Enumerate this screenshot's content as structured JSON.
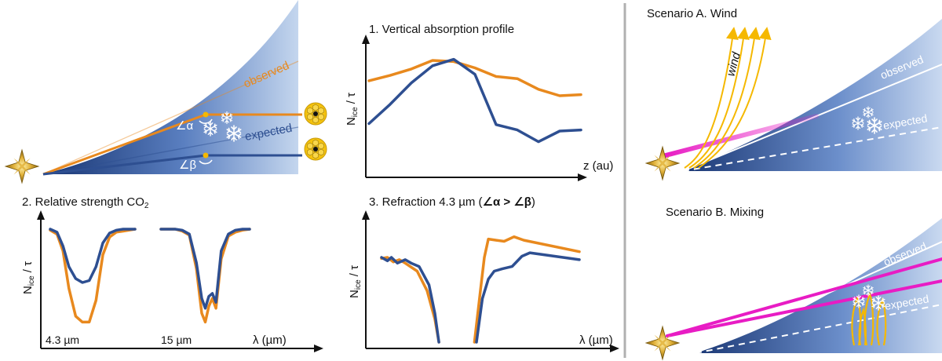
{
  "colors": {
    "orange": "#E8891E",
    "blue": "#2E4F91",
    "magenta": "#E81CC4",
    "gold": "#F5B800",
    "disk_dark": "#1C3A78",
    "disk_light": "#B7CCEA",
    "divider": "#B0B0B0"
  },
  "panel_geometry": {
    "label_observed": "observed",
    "label_expected": "expected",
    "label_alpha": "∠α",
    "label_beta": "∠β",
    "icons": [
      "star-icon",
      "telescope-icon",
      "snowflake-icon"
    ]
  },
  "chart_data": [
    {
      "id": "profile",
      "type": "line",
      "title": "1. Vertical absorption profile",
      "xlabel": "z (au)",
      "ylabel": "N_ice / τ",
      "ylabel_main": "N",
      "ylabel_sub": "ice",
      "ylabel_tail": " / τ",
      "x": [
        0,
        1,
        2,
        3,
        4,
        5,
        6,
        7,
        8,
        9,
        10
      ],
      "xlim": [
        0,
        10
      ],
      "ylim": [
        0,
        1.1
      ],
      "series": [
        {
          "name": "observed",
          "color": "orange",
          "values": [
            0.8,
            0.85,
            0.91,
            0.99,
            0.98,
            0.92,
            0.84,
            0.82,
            0.72,
            0.66,
            0.67
          ]
        },
        {
          "name": "expected",
          "color": "blue",
          "values": [
            0.4,
            0.58,
            0.78,
            0.94,
            1.0,
            0.86,
            0.39,
            0.34,
            0.23,
            0.33,
            0.34
          ]
        }
      ]
    },
    {
      "id": "strength",
      "type": "line",
      "title": "2. Relative strength CO",
      "title_sub": "2",
      "xlabel": "λ (µm)",
      "ylabel_main": "N",
      "ylabel_sub": "ice",
      "ylabel_tail": " / τ",
      "tick_labels": [
        "4.3 µm",
        "15 µm"
      ],
      "ylim": [
        0,
        1
      ],
      "bands": [
        {
          "label": "4.3 µm",
          "x": [
            0,
            0.08,
            0.15,
            0.22,
            0.3,
            0.38,
            0.46,
            0.54,
            0.62,
            0.7,
            0.78,
            0.86,
            0.93,
            1
          ],
          "series": [
            {
              "name": "observed",
              "color": "orange",
              "values": [
                0.99,
                0.95,
                0.78,
                0.4,
                0.12,
                0.06,
                0.06,
                0.28,
                0.74,
                0.92,
                0.97,
                0.98,
                0.99,
                1.0
              ]
            },
            {
              "name": "expected",
              "color": "blue",
              "values": [
                1.0,
                0.97,
                0.83,
                0.62,
                0.5,
                0.46,
                0.48,
                0.62,
                0.86,
                0.96,
                0.99,
                1.0,
                1.0,
                1.0
              ]
            }
          ]
        },
        {
          "label": "15 µm",
          "x": [
            0,
            0.08,
            0.16,
            0.24,
            0.32,
            0.4,
            0.46,
            0.5,
            0.54,
            0.58,
            0.62,
            0.68,
            0.76,
            0.84,
            0.92,
            1
          ],
          "series": [
            {
              "name": "observed",
              "color": "orange",
              "values": [
                1.0,
                1.0,
                1.0,
                0.98,
                0.94,
                0.6,
                0.15,
                0.06,
                0.22,
                0.3,
                0.2,
                0.7,
                0.93,
                0.97,
                0.99,
                1.0
              ]
            },
            {
              "name": "expected",
              "color": "blue",
              "values": [
                1.0,
                1.0,
                1.0,
                0.99,
                0.95,
                0.66,
                0.3,
                0.2,
                0.32,
                0.35,
                0.26,
                0.78,
                0.95,
                0.99,
                1.0,
                1.0
              ]
            }
          ]
        }
      ]
    },
    {
      "id": "refraction",
      "type": "line",
      "title": "3. Refraction 4.3 µm (",
      "title_bold": "∠α > ∠β",
      "title_end": ")",
      "xlabel": "λ (µm)",
      "ylabel_main": "N",
      "ylabel_sub": "ice",
      "ylabel_tail": " / τ",
      "xlim": [
        0,
        1
      ],
      "ylim": [
        0,
        1
      ],
      "series": [
        {
          "name": "observed",
          "color": "orange",
          "segments": [
            {
              "x": [
                0,
                0.03,
                0.06,
                0.09,
                0.12,
                0.18,
                0.23,
                0.27,
                0.29
              ],
              "values": [
                0.73,
                0.74,
                0.7,
                0.72,
                0.69,
                0.62,
                0.45,
                0.2,
                0.0
              ]
            },
            {
              "x": [
                0.47,
                0.5,
                0.52,
                0.54,
                0.58,
                0.62,
                0.67,
                0.72,
                1.0
              ],
              "values": [
                0.0,
                0.45,
                0.74,
                0.9,
                0.89,
                0.88,
                0.92,
                0.89,
                0.79
              ]
            }
          ]
        },
        {
          "name": "expected",
          "color": "blue",
          "segments": [
            {
              "x": [
                0,
                0.03,
                0.05,
                0.08,
                0.12,
                0.15,
                0.19,
                0.24,
                0.27,
                0.29
              ],
              "values": [
                0.74,
                0.71,
                0.74,
                0.69,
                0.72,
                0.69,
                0.66,
                0.5,
                0.25,
                0.0
              ]
            },
            {
              "x": [
                0.48,
                0.51,
                0.54,
                0.57,
                0.61,
                0.66,
                0.71,
                0.75,
                1.0
              ],
              "values": [
                0.0,
                0.38,
                0.55,
                0.62,
                0.64,
                0.66,
                0.75,
                0.78,
                0.72
              ]
            }
          ]
        }
      ]
    }
  ],
  "scenario_a": {
    "title": "Scenario A. Wind",
    "wind_label": "wind",
    "label_observed": "observed",
    "label_expected": "expected"
  },
  "scenario_b": {
    "title": "Scenario B. Mixing",
    "label_observed": "observed",
    "label_expected": "expected"
  }
}
